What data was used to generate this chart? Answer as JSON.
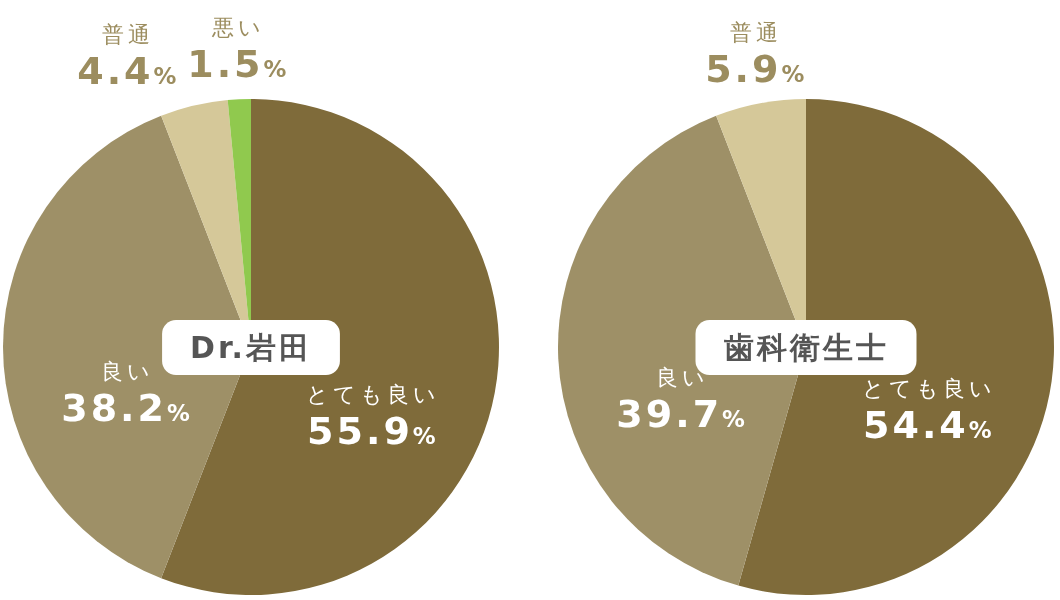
{
  "chart_data": [
    {
      "type": "pie",
      "title": "Dr.岩田",
      "categories": [
        "とても良い",
        "良い",
        "普通",
        "悪い"
      ],
      "values": [
        55.9,
        38.2,
        4.4,
        1.5
      ],
      "colors": [
        "#7f6b3a",
        "#9e9067",
        "#d5c899",
        "#90c94e"
      ],
      "value_labels": [
        "55.9%",
        "38.2%",
        "4.4%",
        "1.5%"
      ]
    },
    {
      "type": "pie",
      "title": "歯科衛生士",
      "categories": [
        "とても良い",
        "良い",
        "普通"
      ],
      "values": [
        54.4,
        39.7,
        5.9
      ],
      "colors": [
        "#7f6b3a",
        "#9e9067",
        "#d5c899"
      ],
      "value_labels": [
        "54.4%",
        "39.7%",
        "5.9%"
      ]
    }
  ]
}
